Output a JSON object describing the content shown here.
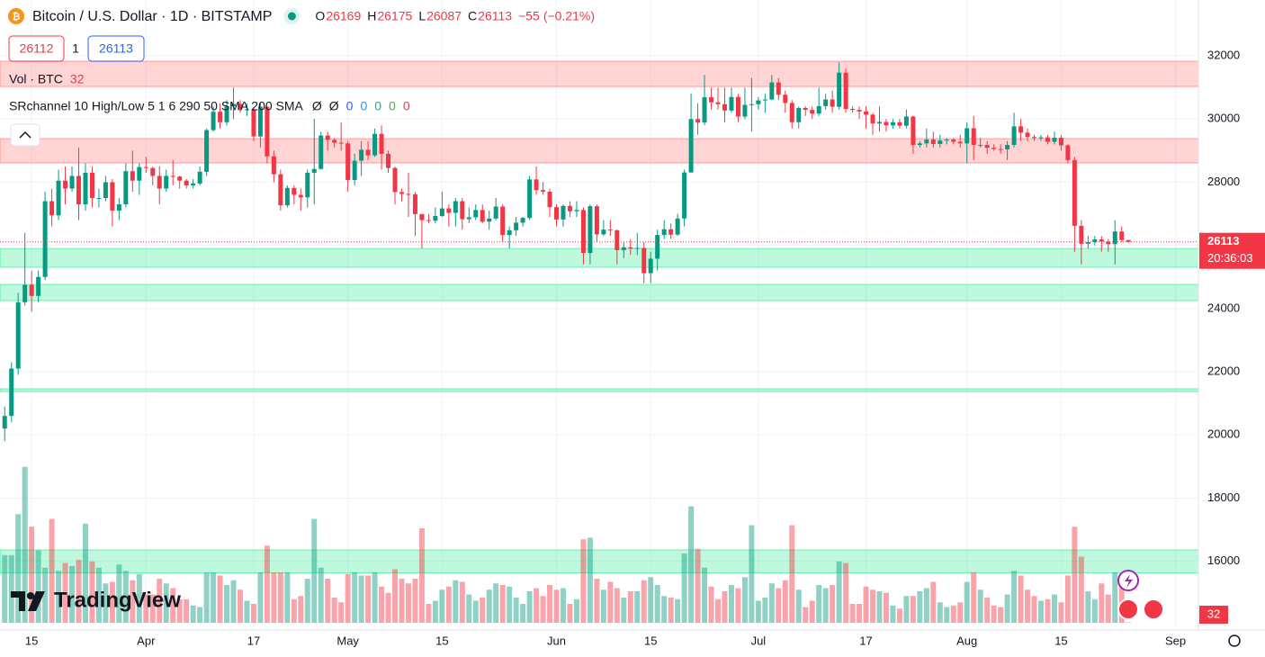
{
  "header": {
    "title": "Bitcoin / U.S. Dollar · 1D · BITSTAMP",
    "ohlc_labels": [
      "O",
      "H",
      "L",
      "C"
    ],
    "change": {
      "value": -55,
      "label": "−55"
    },
    "change_pct": {
      "value": -0.21,
      "label": "(−0.21%)"
    }
  },
  "quote": {
    "bid": 26112,
    "spread": 1,
    "ask": 26113
  },
  "indicators": [
    {
      "name": "Vol · BTC"
    },
    {
      "name": "SRchannel 10 High/Low 5 1 6 290 50 SMA 200 SMA",
      "outputs": [
        {
          "text": "Ø",
          "color": "#131722"
        },
        {
          "text": "Ø",
          "color": "#131722"
        },
        {
          "value": 0,
          "color": "#2962ff"
        },
        {
          "value": 0,
          "color": "#2196f3"
        },
        {
          "value": 0,
          "color": "#26a69a"
        },
        {
          "value": 0,
          "color": "#4caf50"
        },
        {
          "value": 0,
          "color": "#f23645"
        }
      ]
    }
  ],
  "logo": "TradingView",
  "countdown": "20:36:03",
  "chart_data": {
    "type": "candlestick",
    "up_color": "#089981",
    "down_color": "#f23645",
    "open": [
      20200,
      20600,
      22100,
      24200,
      24750,
      24400,
      25000,
      27400,
      26950,
      28050,
      27800,
      28200,
      27300,
      28300,
      27500,
      27500,
      28000,
      27100,
      27300,
      28350,
      28050,
      28480,
      28450,
      28200,
      27800,
      28200,
      28180,
      28050,
      27900,
      27960,
      28330,
      29650,
      30230,
      29900,
      30400,
      30480,
      30310,
      30310,
      29450,
      30390,
      28820,
      28250,
      27270,
      27820,
      27600,
      27520,
      28300,
      28420,
      29480,
      29340,
      29250,
      29230,
      28070,
      28680,
      29030,
      28850,
      29530,
      28900,
      28450,
      27690,
      27630,
      27620,
      26990,
      26800,
      26780,
      26930,
      27170,
      27030,
      27400,
      26830,
      26890,
      27120,
      26750,
      26850,
      27230,
      26330,
      26480,
      26720,
      26870,
      28090,
      27750,
      27700,
      27210,
      26820,
      27250,
      27080,
      27120,
      25760,
      27240,
      26350,
      26500,
      26480,
      25850,
      25940,
      25900,
      25920,
      25120,
      25580,
      26330,
      26510,
      26340,
      26850,
      28310,
      30000,
      29890,
      30690,
      30530,
      30470,
      30270,
      30700,
      30080,
      30450,
      30470,
      30590,
      30620,
      31160,
      30770,
      30510,
      29900,
      30350,
      30290,
      30170,
      30410,
      30620,
      30390,
      31470,
      30320,
      30290,
      30240,
      30140,
      29860,
      29910,
      29800,
      29900,
      29790,
      30080,
      29180,
      29230,
      29350,
      29210,
      29320,
      29350,
      29280,
      29230,
      29710,
      29180,
      29180,
      29090,
      29050,
      29040,
      29180,
      29770,
      29570,
      29430,
      29400,
      29420,
      29280,
      29410,
      29170,
      28700,
      26620,
      26050,
      26100,
      26190,
      26120,
      26040,
      26440,
      26169
    ],
    "high": [
      20900,
      22300,
      24500,
      26400,
      25200,
      25200,
      27700,
      27800,
      28400,
      28500,
      28500,
      29100,
      28600,
      28500,
      27800,
      28200,
      28100,
      27500,
      28600,
      29000,
      28600,
      28800,
      28500,
      28500,
      28400,
      28700,
      28200,
      28100,
      28100,
      28500,
      29700,
      30400,
      30500,
      30600,
      31000,
      30600,
      30500,
      30330,
      30500,
      30400,
      29000,
      28400,
      27900,
      27900,
      27800,
      28400,
      30000,
      29600,
      29600,
      29400,
      29900,
      29300,
      28900,
      29300,
      29300,
      29700,
      29800,
      29000,
      28500,
      27800,
      28300,
      27700,
      27000,
      27000,
      27200,
      27700,
      27300,
      27500,
      27500,
      27200,
      27300,
      27300,
      27100,
      27500,
      27300,
      26600,
      26900,
      26900,
      28200,
      28500,
      28000,
      27800,
      27300,
      27300,
      27400,
      27400,
      27200,
      27300,
      27300,
      26800,
      26800,
      26500,
      26100,
      26200,
      26400,
      26100,
      25800,
      26500,
      26800,
      26700,
      27000,
      28400,
      30800,
      30500,
      31400,
      31000,
      31000,
      31000,
      31000,
      30800,
      31000,
      31300,
      30700,
      30800,
      31400,
      31300,
      30900,
      30600,
      30400,
      30400,
      30400,
      31000,
      30800,
      30900,
      31800,
      31600,
      30400,
      30400,
      30400,
      30200,
      30400,
      30000,
      30000,
      30000,
      30300,
      30100,
      29300,
      29700,
      29600,
      29500,
      29400,
      29400,
      29500,
      29900,
      30100,
      29400,
      29300,
      29200,
      29200,
      29300,
      30200,
      30000,
      29700,
      29500,
      29500,
      29500,
      29600,
      29500,
      29200,
      28800,
      26800,
      26300,
      26300,
      26300,
      26200,
      26800,
      26600,
      26175
    ],
    "low": [
      19800,
      20400,
      21900,
      24100,
      23900,
      24200,
      24900,
      26600,
      26800,
      27300,
      27700,
      26800,
      27100,
      27200,
      27200,
      27400,
      26600,
      26800,
      27200,
      27700,
      27600,
      28300,
      27900,
      27300,
      27700,
      27900,
      27800,
      27800,
      27800,
      27900,
      28200,
      29600,
      29700,
      29800,
      30000,
      30200,
      30100,
      29300,
      29100,
      28600,
      28000,
      27100,
      27200,
      27300,
      27100,
      27200,
      27300,
      28400,
      29000,
      29100,
      29000,
      27700,
      27900,
      28200,
      28700,
      28800,
      28400,
      28300,
      27300,
      27400,
      26900,
      26300,
      25900,
      26700,
      26700,
      26900,
      26600,
      26600,
      26500,
      26700,
      26800,
      26700,
      26500,
      26800,
      26100,
      25900,
      26300,
      26600,
      26800,
      27600,
      27600,
      26900,
      26600,
      26600,
      26900,
      26900,
      25400,
      25400,
      26100,
      26300,
      26300,
      25400,
      25600,
      25700,
      25700,
      24800,
      24800,
      25200,
      26200,
      26200,
      26300,
      26600,
      28300,
      29500,
      29800,
      30300,
      30300,
      29900,
      30200,
      29900,
      30000,
      29600,
      30300,
      30200,
      30600,
      30600,
      30200,
      29700,
      29700,
      30100,
      30000,
      30100,
      30300,
      30200,
      30300,
      30200,
      30200,
      30000,
      29700,
      29500,
      29600,
      29600,
      29700,
      29700,
      29700,
      28900,
      29100,
      29100,
      29100,
      29100,
      29200,
      29200,
      29100,
      28600,
      28700,
      29100,
      28900,
      29000,
      28900,
      28700,
      29100,
      29300,
      29300,
      29300,
      29300,
      29200,
      29200,
      29000,
      28600,
      25800,
      25400,
      25900,
      26000,
      25800,
      25800,
      25400,
      26100,
      26087
    ],
    "close": [
      20600,
      22100,
      24200,
      24750,
      24400,
      25000,
      27400,
      26950,
      28050,
      27800,
      28200,
      27300,
      28300,
      27500,
      27500,
      28000,
      27100,
      27300,
      28350,
      28050,
      28480,
      28450,
      28200,
      27800,
      28200,
      28180,
      28050,
      27900,
      27960,
      28330,
      29650,
      30230,
      29900,
      30400,
      30480,
      30310,
      30310,
      29450,
      30390,
      28820,
      28250,
      27270,
      27820,
      27600,
      27520,
      28300,
      28420,
      29480,
      29340,
      29250,
      29230,
      28070,
      28680,
      29030,
      28850,
      29530,
      28900,
      28450,
      27690,
      27630,
      27620,
      26990,
      26800,
      26780,
      26930,
      27170,
      27030,
      27400,
      26830,
      26890,
      27120,
      26750,
      26850,
      27230,
      26330,
      26480,
      26720,
      26870,
      28090,
      27750,
      27700,
      27210,
      26820,
      27250,
      27080,
      27120,
      25760,
      27240,
      26350,
      26500,
      26480,
      25850,
      25940,
      25900,
      25920,
      25120,
      25580,
      26330,
      26510,
      26340,
      26850,
      28310,
      30000,
      29890,
      30690,
      30530,
      30470,
      30270,
      30700,
      30080,
      30450,
      30470,
      30590,
      30620,
      31160,
      30770,
      30510,
      29900,
      30350,
      30290,
      30170,
      30410,
      30620,
      30390,
      31470,
      30320,
      30290,
      30240,
      30140,
      29860,
      29910,
      29800,
      29900,
      29790,
      30080,
      29180,
      29230,
      29350,
      29210,
      29320,
      29350,
      29280,
      29230,
      29710,
      29180,
      29180,
      29090,
      29050,
      29040,
      29180,
      29770,
      29570,
      29430,
      29400,
      29420,
      29280,
      29410,
      29170,
      28700,
      26620,
      26050,
      26100,
      26190,
      26120,
      26040,
      26440,
      26169,
      26113
    ],
    "volume": {
      "ylim": [
        0,
        10000
      ],
      "values": [
        4300,
        4300,
        6900,
        9900,
        6100,
        4600,
        3500,
        6600,
        3300,
        3800,
        3600,
        4000,
        6300,
        3900,
        3500,
        2500,
        2600,
        3700,
        3300,
        2700,
        3100,
        1800,
        1800,
        2800,
        2500,
        2200,
        1500,
        1500,
        1100,
        1000,
        3200,
        3200,
        3000,
        2400,
        2700,
        2100,
        1400,
        1200,
        3200,
        4900,
        3200,
        3200,
        3200,
        1500,
        1700,
        2800,
        6600,
        3500,
        2800,
        1600,
        1300,
        3100,
        3200,
        3000,
        3000,
        3200,
        2300,
        1900,
        3400,
        2800,
        2500,
        2800,
        6000,
        1200,
        1400,
        2100,
        2300,
        2700,
        2600,
        1800,
        1400,
        1600,
        2100,
        2500,
        2400,
        2300,
        1600,
        1200,
        2000,
        2200,
        1700,
        2400,
        2100,
        2200,
        1200,
        1500,
        5300,
        5400,
        2800,
        2100,
        2600,
        2200,
        1600,
        2000,
        2000,
        2700,
        2900,
        2400,
        1700,
        1600,
        1500,
        4400,
        7400,
        4700,
        3500,
        2300,
        1500,
        2000,
        2400,
        2200,
        2900,
        6200,
        1400,
        1600,
        2500,
        2200,
        2700,
        6200,
        2100,
        1000,
        1400,
        2400,
        2200,
        2400,
        3900,
        3800,
        1200,
        1200,
        2300,
        2100,
        2000,
        1900,
        1100,
        900,
        1700,
        1700,
        2000,
        2200,
        2600,
        1300,
        1000,
        1100,
        1300,
        2600,
        3200,
        2100,
        1600,
        1100,
        1000,
        1800,
        3300,
        3000,
        2100,
        1700,
        1400,
        1500,
        1800,
        1300,
        3000,
        6100,
        4200,
        2000,
        1500,
        2500,
        1800,
        3200,
        2600,
        32
      ]
    },
    "zones": [
      {
        "low": 31030,
        "high": 31830,
        "color": "#ff5252"
      },
      {
        "low": 28610,
        "high": 29380,
        "color": "#ff5252"
      },
      {
        "low": 25305,
        "high": 25903,
        "color": "#00e676"
      },
      {
        "low": 24251,
        "high": 24764,
        "color": "#00e676"
      },
      {
        "low": 21370,
        "high": 21460,
        "color": "#00e676"
      },
      {
        "low": 15630,
        "high": 16359,
        "color": "#00e676"
      }
    ],
    "ylim": [
      14050,
      33770
    ],
    "yticks": [
      16000,
      18000,
      20000,
      22000,
      24000,
      26000,
      28000,
      30000,
      32000
    ],
    "xlim": [
      -0.7,
      177.4
    ],
    "xticks": [
      {
        "value": 4,
        "label": "15"
      },
      {
        "value": 21,
        "label": "Apr"
      },
      {
        "value": 37,
        "label": "17"
      },
      {
        "value": 51,
        "label": "May"
      },
      {
        "value": 65,
        "label": "15"
      },
      {
        "value": 82,
        "label": "Jun"
      },
      {
        "value": 96,
        "label": "15"
      },
      {
        "value": 112,
        "label": "Jul"
      },
      {
        "value": 128,
        "label": "17"
      },
      {
        "value": 143,
        "label": "Aug"
      },
      {
        "value": 157,
        "label": "15"
      },
      {
        "value": 174,
        "label": "Sep"
      }
    ],
    "grid": true
  }
}
